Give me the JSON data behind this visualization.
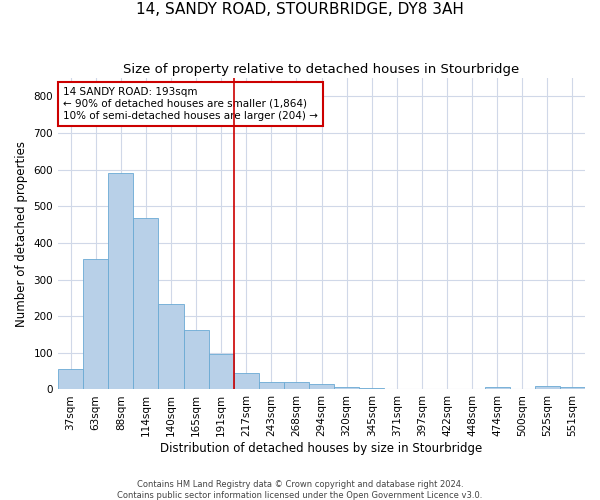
{
  "title": "14, SANDY ROAD, STOURBRIDGE, DY8 3AH",
  "subtitle": "Size of property relative to detached houses in Stourbridge",
  "xlabel": "Distribution of detached houses by size in Stourbridge",
  "ylabel": "Number of detached properties",
  "footer_line1": "Contains HM Land Registry data © Crown copyright and database right 2024.",
  "footer_line2": "Contains public sector information licensed under the Open Government Licence v3.0.",
  "categories": [
    "37sqm",
    "63sqm",
    "88sqm",
    "114sqm",
    "140sqm",
    "165sqm",
    "191sqm",
    "217sqm",
    "243sqm",
    "268sqm",
    "294sqm",
    "320sqm",
    "345sqm",
    "371sqm",
    "397sqm",
    "422sqm",
    "448sqm",
    "474sqm",
    "500sqm",
    "525sqm",
    "551sqm"
  ],
  "values": [
    55,
    357,
    590,
    467,
    234,
    163,
    96,
    45,
    20,
    19,
    15,
    8,
    3,
    1,
    1,
    0,
    0,
    8,
    0,
    9,
    6
  ],
  "bar_color": "#b8d0e8",
  "bar_edge_color": "#6aaad4",
  "vline_x": 6.5,
  "vline_color": "#cc0000",
  "annotation_text": "14 SANDY ROAD: 193sqm\n← 90% of detached houses are smaller (1,864)\n10% of semi-detached houses are larger (204) →",
  "annotation_box_color": "#ffffff",
  "annotation_box_edge_color": "#cc0000",
  "ylim": [
    0,
    850
  ],
  "yticks": [
    0,
    100,
    200,
    300,
    400,
    500,
    600,
    700,
    800
  ],
  "background_color": "#ffffff",
  "plot_background_color": "#ffffff",
  "grid_color": "#d0d8e8",
  "title_fontsize": 11,
  "subtitle_fontsize": 9.5,
  "label_fontsize": 8.5,
  "tick_fontsize": 7.5,
  "annotation_fontsize": 7.5
}
